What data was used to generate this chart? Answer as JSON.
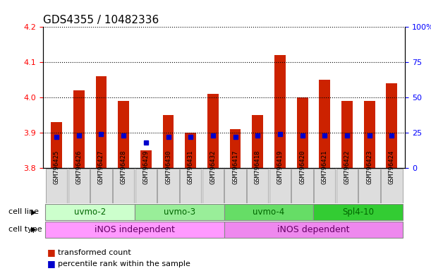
{
  "title": "GDS4355 / 10482336",
  "samples": [
    "GSM796425",
    "GSM796426",
    "GSM796427",
    "GSM796428",
    "GSM796429",
    "GSM796430",
    "GSM796431",
    "GSM796432",
    "GSM796417",
    "GSM796418",
    "GSM796419",
    "GSM796420",
    "GSM796421",
    "GSM796422",
    "GSM796423",
    "GSM796424"
  ],
  "transformed_count": [
    3.93,
    4.02,
    4.06,
    3.99,
    3.85,
    3.95,
    3.9,
    4.01,
    3.91,
    3.95,
    4.12,
    4.0,
    4.05,
    3.99,
    3.99,
    4.04
  ],
  "percentile_rank": [
    22,
    23,
    24,
    23,
    18,
    22,
    22,
    23,
    22,
    23,
    24,
    23,
    23,
    23,
    23,
    23
  ],
  "ymin": 3.8,
  "ymax": 4.2,
  "yticks_red": [
    3.8,
    3.9,
    4.0,
    4.1,
    4.2
  ],
  "yticks_blue": [
    0,
    25,
    50,
    75,
    100
  ],
  "cell_line_groups": [
    {
      "label": "uvmo-2",
      "start": 0,
      "end": 4,
      "color": "#ccffcc"
    },
    {
      "label": "uvmo-3",
      "start": 4,
      "end": 8,
      "color": "#99ee99"
    },
    {
      "label": "uvmo-4",
      "start": 8,
      "end": 12,
      "color": "#66dd66"
    },
    {
      "label": "Spl4-10",
      "start": 12,
      "end": 16,
      "color": "#33cc33"
    }
  ],
  "cell_type_groups": [
    {
      "label": "iNOS independent",
      "start": 0,
      "end": 8,
      "color": "#ff99ff"
    },
    {
      "label": "iNOS dependent",
      "start": 8,
      "end": 16,
      "color": "#ee88ee"
    }
  ],
  "bar_color": "#cc2200",
  "dot_color": "#0000cc",
  "background_color": "#ffffff",
  "title_fontsize": 11,
  "tick_fontsize": 8,
  "label_fontsize": 9
}
